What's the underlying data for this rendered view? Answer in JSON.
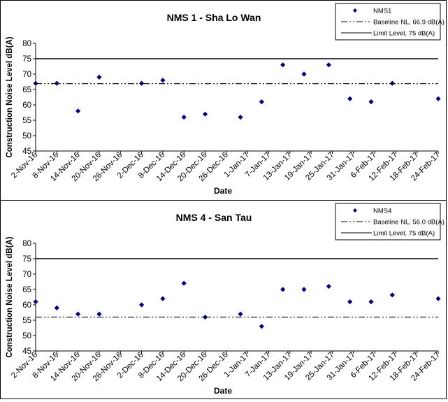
{
  "chart_data": [
    {
      "type": "scatter",
      "title": "NMS 1 - Sha Lo Wan",
      "xlabel": "Date",
      "ylabel": "Construction Noise Level  dB(A)",
      "ylim": [
        45,
        80
      ],
      "yticks": [
        "45",
        "50",
        "55",
        "60",
        "65",
        "70",
        "75",
        "80"
      ],
      "xlim": [
        "2016-11-02",
        "2017-02-24"
      ],
      "xtick_labels": [
        "2-Nov-16",
        "8-Nov-16",
        "14-Nov-16",
        "20-Nov-16",
        "26-Nov-16",
        "2-Dec-16",
        "8-Dec-16",
        "14-Dec-16",
        "20-Dec-16",
        "26-Dec-16",
        "1-Jan-17",
        "7-Jan-17",
        "13-Jan-17",
        "19-Jan-17",
        "25-Jan-17",
        "31-Jan-17",
        "6-Feb-17",
        "12-Feb-17",
        "18-Feb-17",
        "24-Feb-17"
      ],
      "legend_position": "top-right",
      "series": [
        {
          "name": "NMS1",
          "kind": "points",
          "color": "#000080",
          "x": [
            "2016-11-02",
            "2016-11-08",
            "2016-11-14",
            "2016-11-20",
            "2016-12-02",
            "2016-12-08",
            "2016-12-14",
            "2016-12-20",
            "2016-12-30",
            "2017-01-05",
            "2017-01-11",
            "2017-01-17",
            "2017-01-24",
            "2017-01-30",
            "2017-02-05",
            "2017-02-11",
            "2017-02-24"
          ],
          "y": [
            67,
            67,
            58,
            69,
            67,
            68,
            56,
            57,
            56,
            61,
            73,
            70,
            73,
            62,
            61,
            67,
            62
          ]
        },
        {
          "name": "Baseline NL, 66.9 dB(A)",
          "kind": "hline",
          "style": "dashdot",
          "color": "#000000",
          "y": 66.9
        },
        {
          "name": "Limit Level, 75 dB(A)",
          "kind": "hline",
          "style": "solid",
          "color": "#000000",
          "y": 75
        }
      ]
    },
    {
      "type": "scatter",
      "title": "NMS 4 - San Tau",
      "xlabel": "Date",
      "ylabel": "Construction Noise Level  dB(A)",
      "ylim": [
        45,
        80
      ],
      "yticks": [
        "45",
        "50",
        "55",
        "60",
        "65",
        "70",
        "75",
        "80"
      ],
      "xlim": [
        "2016-11-02",
        "2017-02-24"
      ],
      "xtick_labels": [
        "2-Nov-16",
        "8-Nov-16",
        "14-Nov-16",
        "20-Nov-16",
        "26-Nov-16",
        "2-Dec-16",
        "8-Dec-16",
        "14-Dec-16",
        "20-Dec-16",
        "26-Dec-16",
        "1-Jan-17",
        "7-Jan-17",
        "13-Jan-17",
        "19-Jan-17",
        "25-Jan-17",
        "31-Jan-17",
        "6-Feb-17",
        "12-Feb-17",
        "18-Feb-17",
        "24-Feb-17"
      ],
      "legend_position": "top-right",
      "series": [
        {
          "name": "NMS4",
          "kind": "points",
          "color": "#000080",
          "x": [
            "2016-11-02",
            "2016-11-08",
            "2016-11-14",
            "2016-11-20",
            "2016-12-02",
            "2016-12-08",
            "2016-12-14",
            "2016-12-20",
            "2016-12-30",
            "2017-01-05",
            "2017-01-11",
            "2017-01-17",
            "2017-01-24",
            "2017-01-30",
            "2017-02-05",
            "2017-02-11",
            "2017-02-24"
          ],
          "y": [
            61,
            59,
            57,
            57,
            60,
            62,
            67,
            56,
            57,
            53,
            65,
            65,
            66,
            61,
            61,
            63.2,
            62
          ]
        },
        {
          "name": "Baseline NL, 56.0 dB(A)",
          "kind": "hline",
          "style": "dashdot",
          "color": "#000000",
          "y": 56.0
        },
        {
          "name": "Limit Level, 75 dB(A)",
          "kind": "hline",
          "style": "solid",
          "color": "#000000",
          "y": 75
        }
      ]
    }
  ]
}
